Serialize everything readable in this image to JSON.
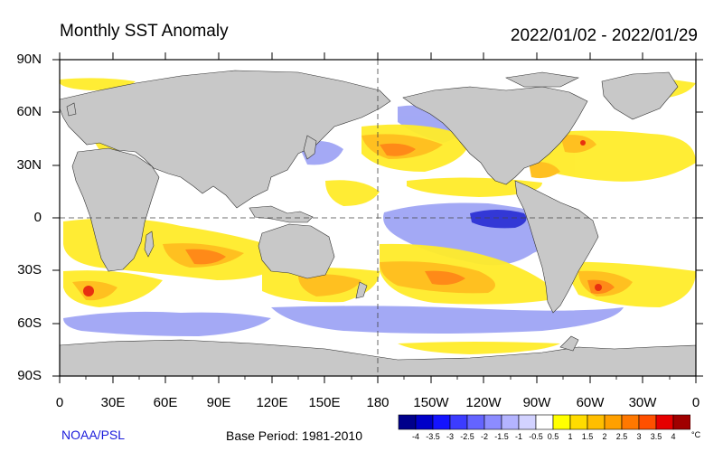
{
  "title": "Monthly SST Anomaly",
  "date_range": "2022/01/02 - 2022/01/29",
  "credit": "NOAA/PSL",
  "base_period": "Base Period: 1981-2010",
  "lat_labels": [
    "90N",
    "60N",
    "30N",
    "0",
    "30S",
    "60S",
    "90S"
  ],
  "lon_labels": [
    "0",
    "30E",
    "60E",
    "90E",
    "120E",
    "150E",
    "180",
    "150W",
    "120W",
    "90W",
    "60W",
    "30W",
    "0"
  ],
  "colorbar": {
    "unit": "°C",
    "labels": [
      "-4",
      "-3.5",
      "-3",
      "-2.5",
      "-2",
      "-1.5",
      "-1",
      "-0.5",
      "0.5",
      "1",
      "1.5",
      "2",
      "2.5",
      "3",
      "3.5",
      "4"
    ],
    "colors": [
      "#00008b",
      "#0000c8",
      "#1414ff",
      "#3c3cff",
      "#6464ff",
      "#8c8cff",
      "#b4b4ff",
      "#d2d2ff",
      "#ffffff",
      "#ffff00",
      "#ffdc00",
      "#ffbe00",
      "#ffa000",
      "#ff7800",
      "#ff5000",
      "#e60000",
      "#a00000"
    ]
  },
  "colors": {
    "land": "#c8c8c8",
    "cold": "#9aa0f4",
    "cold_deep": "#2f33d8",
    "warm": "#ffec2a",
    "warm_mid": "#ffc020",
    "warm_hot": "#ff8a18",
    "hot": "#e83010"
  }
}
